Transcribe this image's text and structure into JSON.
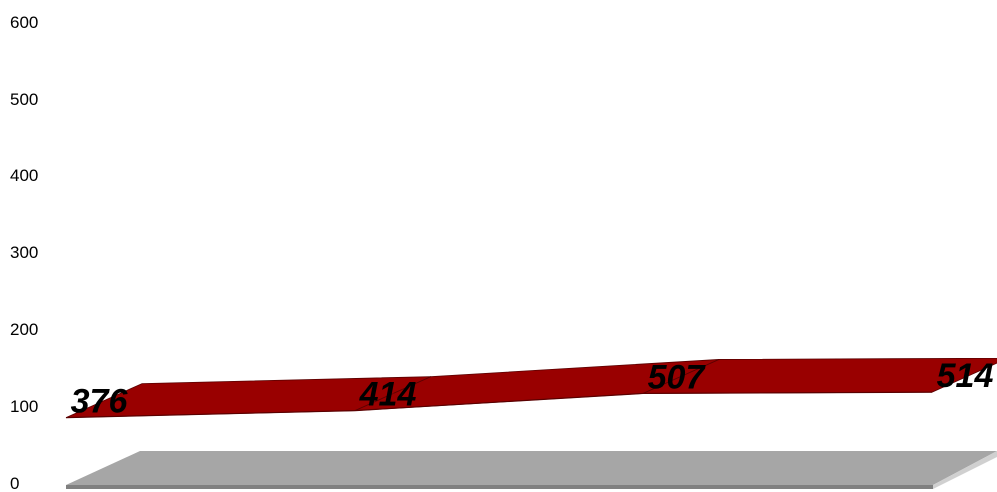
{
  "chart_data": {
    "type": "line",
    "style": "3d-ribbon",
    "categories": [
      "",
      "",
      "",
      ""
    ],
    "series": [
      {
        "values": [
          376,
          414,
          507,
          514
        ]
      }
    ],
    "data_labels": [
      "376",
      "414",
      "507",
      "514"
    ],
    "ylim": [
      0,
      600
    ],
    "yticks": [
      "0",
      "100",
      "200",
      "300",
      "400",
      "500",
      "600"
    ],
    "grid": false,
    "legend": "none",
    "colors": {
      "ribbon_top": "#990000",
      "ribbon_front": "#7a0000",
      "ribbon_edge": "#5a0000",
      "floor_top": "#a6a6a6",
      "floor_front": "#808080",
      "floor_side": "#d0d0d0"
    }
  }
}
